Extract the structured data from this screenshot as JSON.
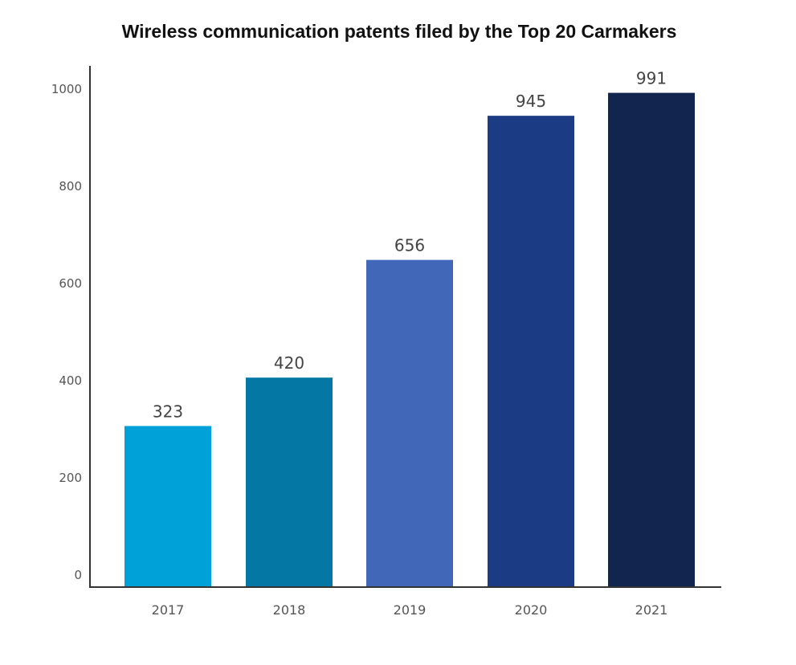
{
  "chart_data": {
    "type": "bar",
    "title": "Wireless communication patents filed by the Top 20 Carmakers",
    "xlabel": "",
    "ylabel": "",
    "categories": [
      "2017",
      "2018",
      "2019",
      "2020",
      "2021"
    ],
    "values": [
      323,
      420,
      656,
      945,
      991
    ],
    "data_labels": [
      "323",
      "420",
      "656",
      "945",
      "991"
    ],
    "colors": [
      "#00a0d8",
      "#0577a4",
      "#4168b8",
      "#1b3c84",
      "#12254f"
    ],
    "ylim": [
      0,
      1000
    ],
    "yticks": [
      0,
      200,
      400,
      600,
      800,
      1000
    ],
    "ytick_labels": [
      "0",
      "200",
      "400",
      "600",
      "800",
      "1000"
    ],
    "grid": false,
    "legend": "none"
  }
}
